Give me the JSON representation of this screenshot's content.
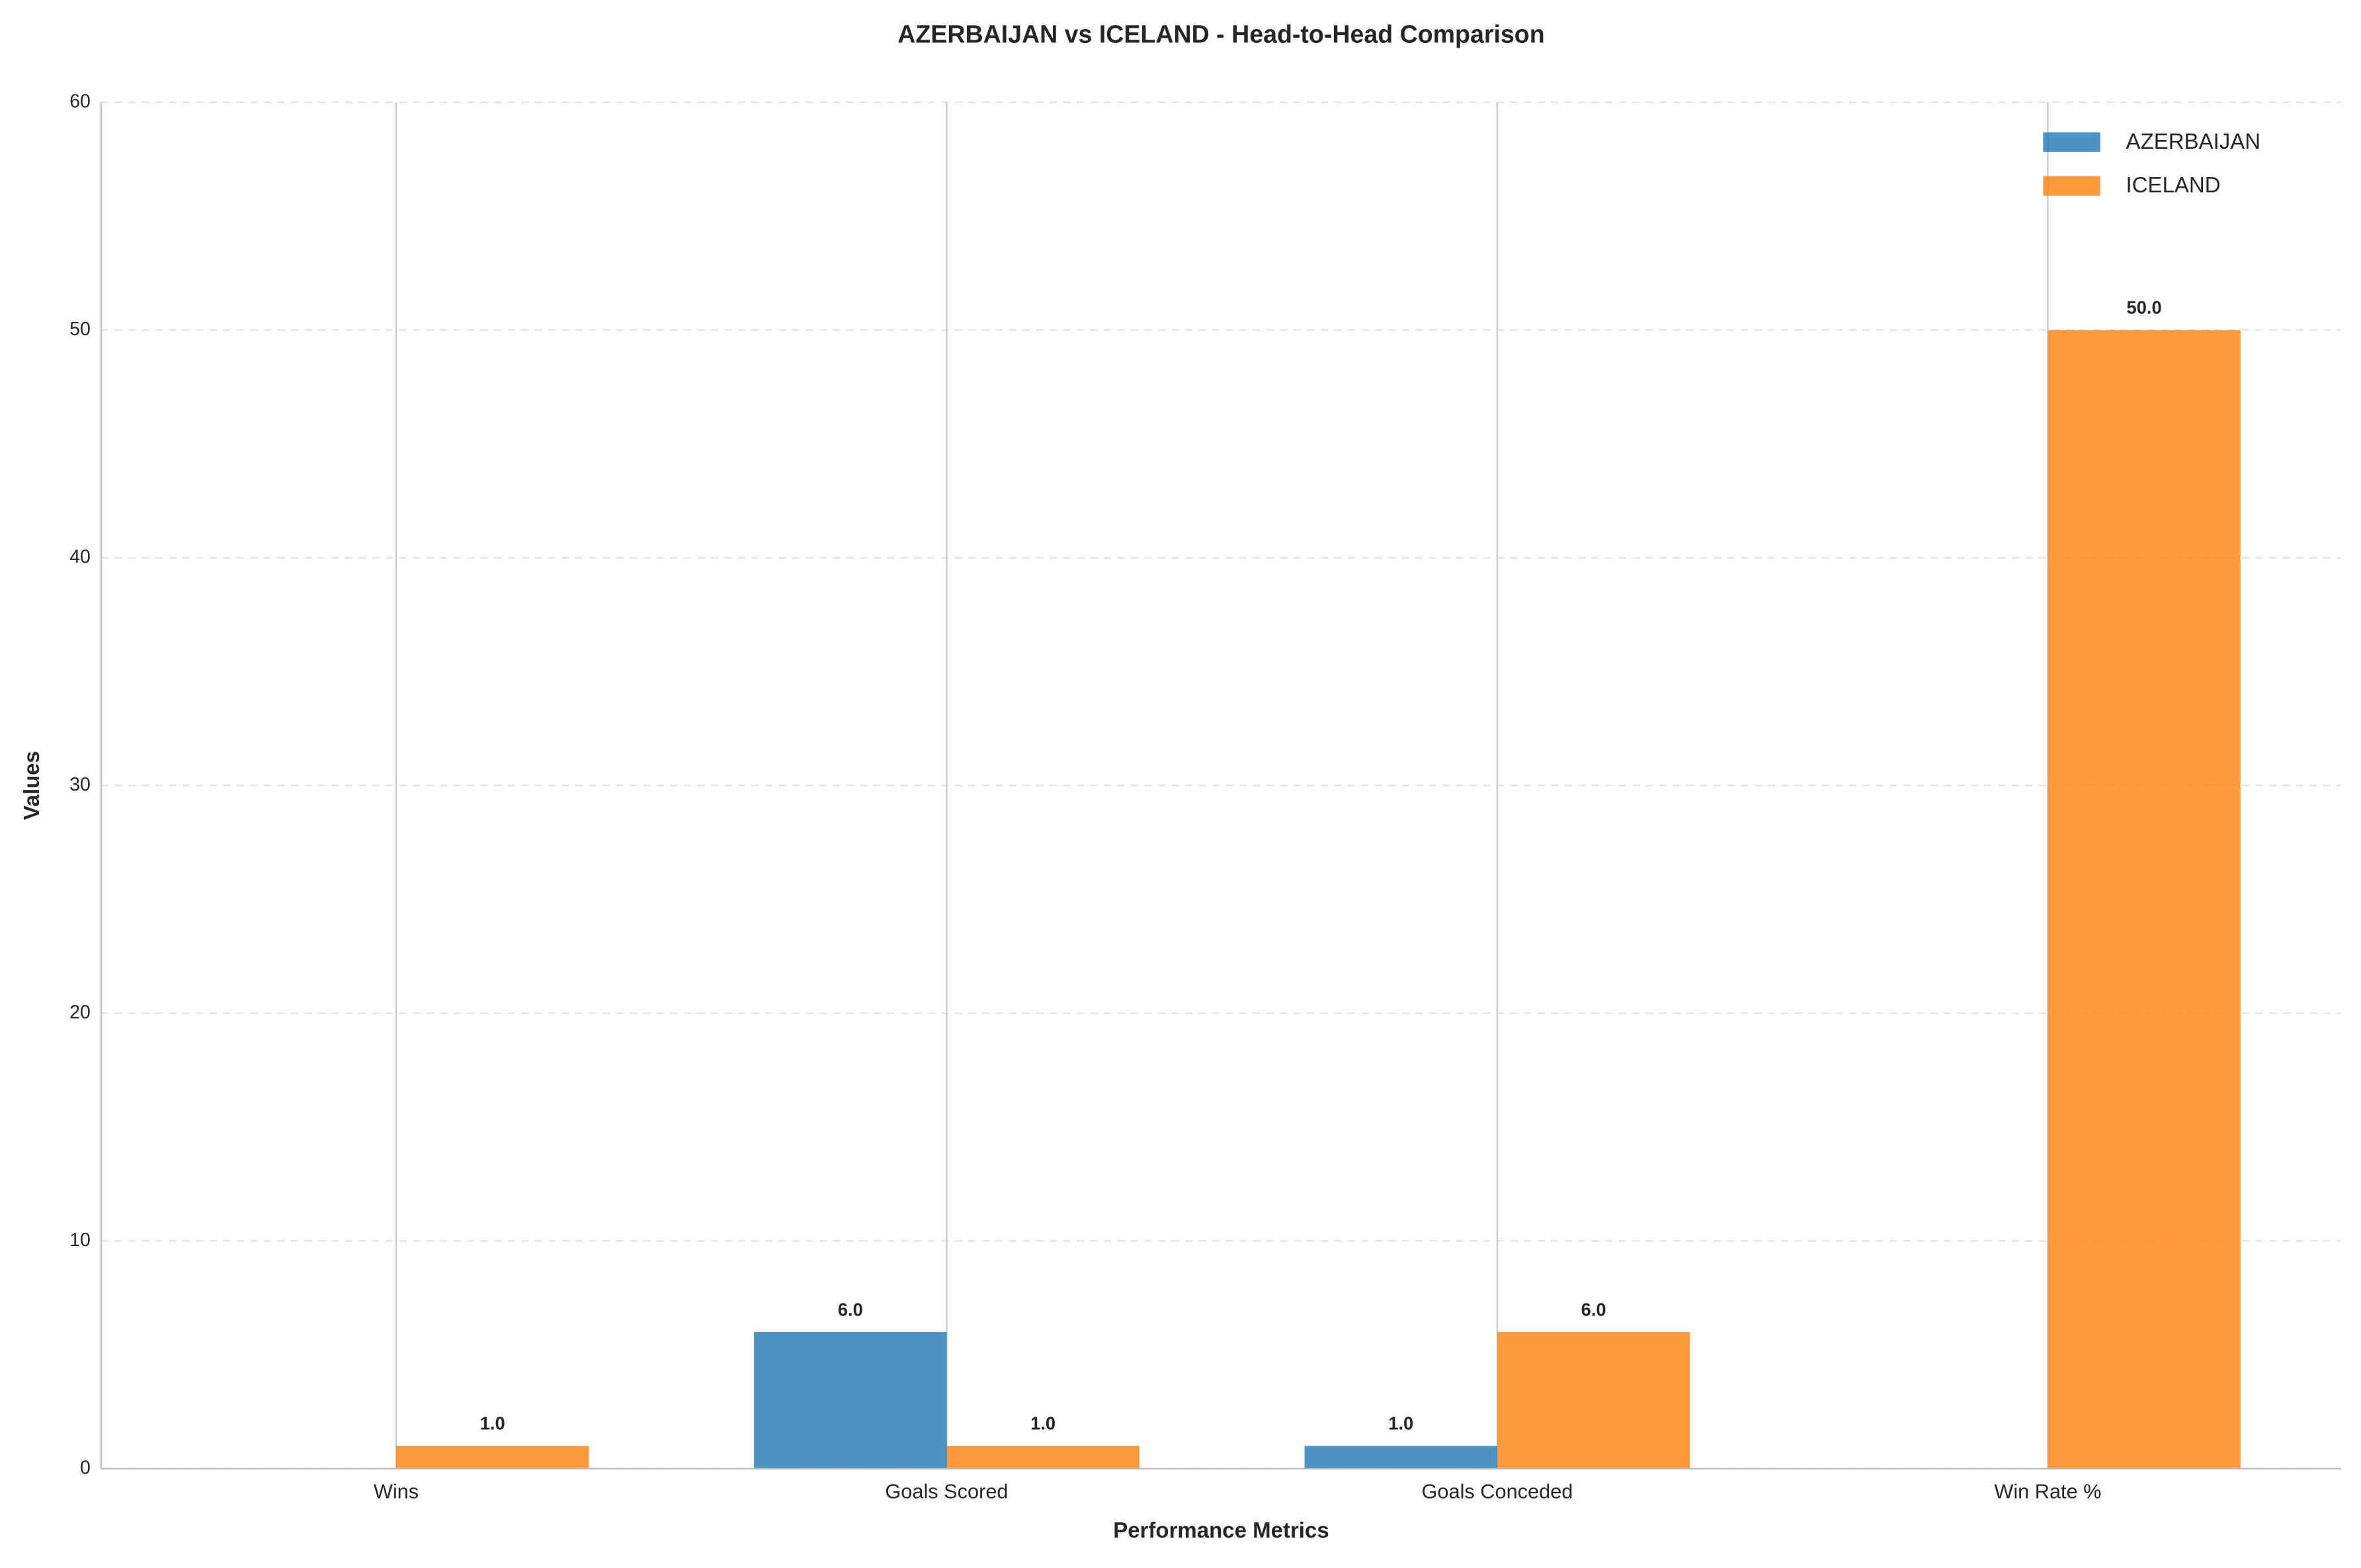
{
  "chart_data": {
    "type": "bar",
    "title": "AZERBAIJAN vs ICELAND - Head-to-Head Comparison",
    "x_label": "Performance Metrics",
    "y_label": "Values",
    "categories": [
      "Wins",
      "Goals Scored",
      "Goals Conceded",
      "Win Rate %"
    ],
    "series": [
      {
        "name": "AZERBAIJAN",
        "color": "#1f77b4",
        "values": [
          0,
          6,
          1,
          0
        ],
        "value_labels": [
          null,
          "6.0",
          "1.0",
          null
        ]
      },
      {
        "name": "ICELAND",
        "color": "#ff7f0e",
        "values": [
          1,
          1,
          6,
          50
        ],
        "value_labels": [
          "1.0",
          "1.0",
          "6.0",
          "50.0"
        ]
      }
    ],
    "ylim": [
      0,
      60
    ],
    "yticks": [
      0,
      10,
      20,
      30,
      40,
      50,
      60
    ],
    "grid": true,
    "legend": "upper right"
  }
}
